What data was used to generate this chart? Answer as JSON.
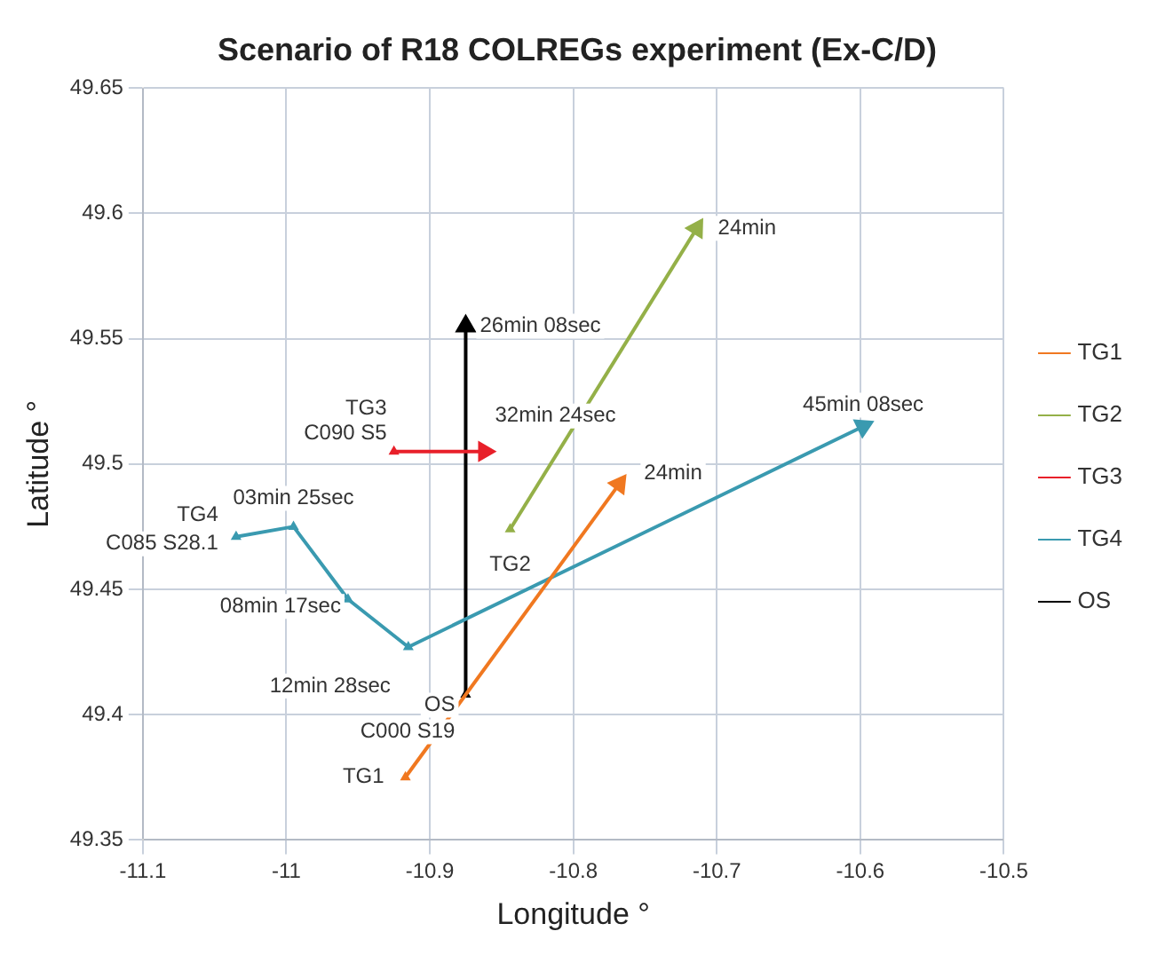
{
  "chart_data": {
    "type": "line",
    "title": "Scenario of R18 COLREGs experiment (Ex-C/D)",
    "xlabel": "Longitude °",
    "ylabel": "Latitude °",
    "xlim": [
      -11.1,
      -10.5
    ],
    "xticks": [
      -11.1,
      -11,
      -10.9,
      -10.8,
      -10.7,
      -10.6,
      -10.5
    ],
    "ylim": [
      49.35,
      49.65
    ],
    "yticks": [
      49.35,
      49.4,
      49.45,
      49.5,
      49.55,
      49.6,
      49.65
    ],
    "grid": true,
    "legend": "right",
    "marker": "triangle",
    "line_style": "solid",
    "series": [
      {
        "name": "TG1",
        "color": "#f07820",
        "x": [
          -10.917,
          -10.768
        ],
        "values": [
          49.375,
          49.492
        ]
      },
      {
        "name": "TG2",
        "color": "#94b048",
        "x": [
          -10.844,
          -10.714
        ],
        "values": [
          49.474,
          49.594
        ]
      },
      {
        "name": "TG3",
        "color": "#e8202a",
        "x": [
          -10.925,
          -10.862
        ],
        "values": [
          49.505,
          49.505
        ]
      },
      {
        "name": "TG4",
        "color": "#3a9ab0",
        "x": [
          -11.035,
          -10.995,
          -10.957,
          -10.915,
          -10.598
        ],
        "values": [
          49.471,
          49.475,
          49.446,
          49.427,
          49.515
        ]
      },
      {
        "name": "OS",
        "color": "#000000",
        "x": [
          -10.875,
          -10.875
        ],
        "values": [
          49.408,
          49.555
        ]
      }
    ],
    "annotations": [
      {
        "text": "TG1",
        "x": -10.917,
        "y": 49.375
      },
      {
        "text": "24min",
        "x": -10.768,
        "y": 49.492
      },
      {
        "text": "TG2",
        "x": -10.844,
        "y": 49.474
      },
      {
        "text": "24min",
        "x": -10.714,
        "y": 49.594
      },
      {
        "text": "TG3",
        "x": -10.925,
        "y": 49.505
      },
      {
        "text": "C090 S5",
        "x": -10.925,
        "y": 49.505
      },
      {
        "text": "32min 24sec",
        "x": -10.862,
        "y": 49.505
      },
      {
        "text": "TG4",
        "x": -11.035,
        "y": 49.471
      },
      {
        "text": "C085 S28.1",
        "x": -11.035,
        "y": 49.471
      },
      {
        "text": "03min 25sec",
        "x": -10.995,
        "y": 49.475
      },
      {
        "text": "08min 17sec",
        "x": -10.957,
        "y": 49.446
      },
      {
        "text": "12min 28sec",
        "x": -10.915,
        "y": 49.427
      },
      {
        "text": "45min 08sec",
        "x": -10.598,
        "y": 49.515
      },
      {
        "text": "OS",
        "x": -10.875,
        "y": 49.408
      },
      {
        "text": "C000 S19",
        "x": -10.875,
        "y": 49.408
      },
      {
        "text": "26min 08sec",
        "x": -10.875,
        "y": 49.555
      }
    ]
  }
}
